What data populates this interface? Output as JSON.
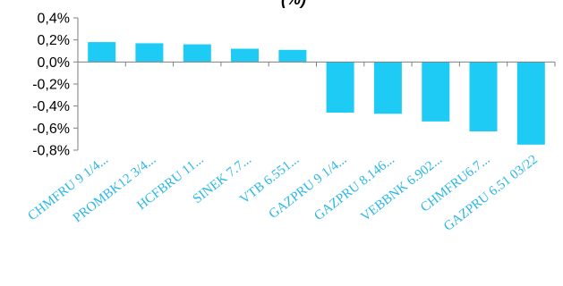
{
  "chart_data": {
    "type": "bar",
    "title": "(%)",
    "categories": [
      "CHMFRU 9 1/4...",
      "PROMBK12 3/4...",
      "HCFBRU 11...",
      "SINEK 7.7...",
      "VTB 6.551...",
      "GAZPRU 9 1/4...",
      "GAZPRU 8.146...",
      "VEBBNK 6.902...",
      "CHMFRU6.7...",
      "GAZPRU 6.51 03/22"
    ],
    "values": [
      0.18,
      0.17,
      0.16,
      0.12,
      0.11,
      -0.46,
      -0.47,
      -0.54,
      -0.63,
      -0.75
    ],
    "ylim": [
      -0.8,
      0.4
    ],
    "yticks": [
      0.4,
      0.2,
      0.0,
      -0.2,
      -0.4,
      -0.6,
      -0.8
    ],
    "ytick_labels": [
      "0,4%",
      "0,2%",
      "0,0%",
      "-0,2%",
      "-0,4%",
      "-0,6%",
      "-0,8%"
    ],
    "xlabel": "",
    "ylabel": "",
    "grid": false,
    "legend": "none",
    "colors": {
      "bar": "#1ECBF5",
      "axis": "#7F7F7F",
      "xtick_text": "#29B6E6",
      "ytick_text": "#000000"
    }
  }
}
